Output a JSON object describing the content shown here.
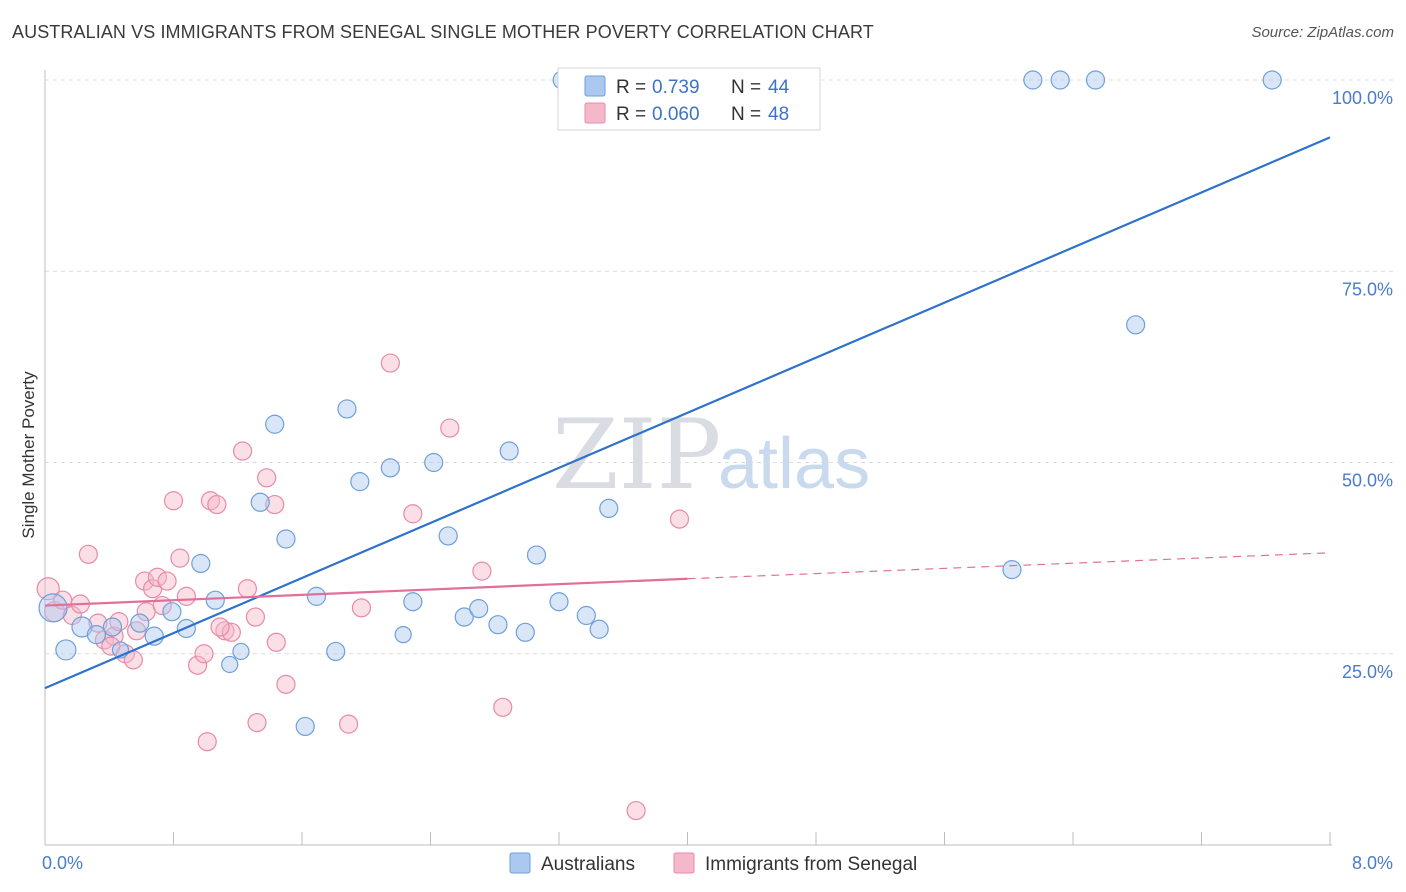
{
  "header": {
    "title": "AUSTRALIAN VS IMMIGRANTS FROM SENEGAL SINGLE MOTHER POVERTY CORRELATION CHART",
    "source": "Source: ZipAtlas.com"
  },
  "watermark": {
    "zip": "ZIP",
    "atlas": "atlas"
  },
  "legend": {
    "rows": [
      {
        "r_label": "R =",
        "r_value": "0.739",
        "n_label": "N =",
        "n_value": "44"
      },
      {
        "r_label": "R =",
        "r_value": "0.060",
        "n_label": "N =",
        "n_value": "48"
      }
    ]
  },
  "bottom_legend": {
    "series_a": "Australians",
    "series_b": "Immigrants from Senegal"
  },
  "colors": {
    "blue_fill": "#aac8f0",
    "blue_stroke": "#6f9fd8",
    "blue_line": "#2f72cc",
    "pink_fill": "#f5b8ca",
    "pink_stroke": "#e88aa8",
    "pink_line": "#e0709a",
    "tick_text": "#4a7cc9",
    "grid": "#dcdcdc"
  },
  "chart_data": {
    "type": "scatter",
    "title": "AUSTRALIAN VS IMMIGRANTS FROM SENEGAL SINGLE MOTHER POVERTY CORRELATION CHART",
    "xlabel": "",
    "ylabel": "Single Mother Poverty",
    "xlim": [
      0,
      8
    ],
    "ylim": [
      0,
      100
    ],
    "x_tick_labels": [
      "0.0%",
      "8.0%"
    ],
    "y_tick_labels": [
      "25.0%",
      "50.0%",
      "75.0%",
      "100.0%"
    ],
    "y_ticks": [
      25,
      50,
      75,
      100
    ],
    "x_minor_ticks": [
      0.8,
      1.6,
      2.4,
      3.2,
      4.0,
      4.8,
      5.6,
      6.4,
      7.2,
      8.0
    ],
    "grid": true,
    "legend_position": "top-center",
    "series": [
      {
        "name": "Australians",
        "color": "#aac8f0",
        "stats": {
          "R": 0.739,
          "N": 44
        },
        "trend": {
          "x": [
            0,
            8
          ],
          "y": [
            20.5,
            92.5
          ]
        },
        "points": [
          [
            0.05,
            31,
            14
          ],
          [
            0.13,
            25.5,
            10
          ],
          [
            0.23,
            28.5,
            10
          ],
          [
            0.32,
            27.5,
            9
          ],
          [
            0.42,
            28.5,
            9
          ],
          [
            0.47,
            25.5,
            8
          ],
          [
            0.59,
            29,
            9
          ],
          [
            0.68,
            27.3,
            9
          ],
          [
            0.79,
            30.5,
            9
          ],
          [
            0.88,
            28.3,
            9
          ],
          [
            0.97,
            36.8,
            9
          ],
          [
            1.06,
            32,
            9
          ],
          [
            1.15,
            23.6,
            8
          ],
          [
            1.22,
            25.3,
            8
          ],
          [
            1.34,
            44.8,
            9
          ],
          [
            1.43,
            55,
            9
          ],
          [
            1.5,
            40,
            9
          ],
          [
            1.69,
            32.5,
            9
          ],
          [
            1.81,
            25.3,
            9
          ],
          [
            1.88,
            57,
            9
          ],
          [
            1.96,
            47.5,
            9
          ],
          [
            2.15,
            49.3,
            9
          ],
          [
            2.23,
            27.5,
            8
          ],
          [
            2.29,
            31.8,
            9
          ],
          [
            2.42,
            50,
            9
          ],
          [
            2.51,
            40.4,
            9
          ],
          [
            2.61,
            29.8,
            9
          ],
          [
            2.7,
            30.9,
            9
          ],
          [
            2.82,
            28.8,
            9
          ],
          [
            2.89,
            51.5,
            9
          ],
          [
            2.99,
            27.8,
            9
          ],
          [
            3.06,
            37.9,
            9
          ],
          [
            3.2,
            31.8,
            9
          ],
          [
            3.37,
            30,
            9
          ],
          [
            3.45,
            28.2,
            9
          ],
          [
            3.51,
            44,
            9
          ],
          [
            1.62,
            15.5,
            9
          ],
          [
            3.22,
            100,
            9
          ],
          [
            6.15,
            100,
            9
          ],
          [
            6.32,
            100,
            9
          ],
          [
            6.54,
            100,
            9
          ],
          [
            7.64,
            100,
            9
          ],
          [
            6.79,
            68,
            9
          ],
          [
            6.02,
            36,
            9
          ]
        ]
      },
      {
        "name": "Immigrants from Senegal",
        "color": "#f5b8ca",
        "stats": {
          "R": 0.06,
          "N": 48
        },
        "trend": {
          "x": [
            0,
            4.0
          ],
          "y": [
            31.3,
            34.8
          ]
        },
        "trend_dashed": {
          "x": [
            4.0,
            8
          ],
          "y": [
            34.8,
            38.2
          ]
        },
        "points": [
          [
            0.02,
            33.5,
            11
          ],
          [
            0.06,
            30.5,
            10
          ],
          [
            0.11,
            32,
            9
          ],
          [
            0.17,
            30,
            9
          ],
          [
            0.22,
            31.5,
            9
          ],
          [
            0.27,
            38,
            9
          ],
          [
            0.33,
            29,
            9
          ],
          [
            0.37,
            26.8,
            9
          ],
          [
            0.43,
            27.3,
            9
          ],
          [
            0.5,
            25,
            9
          ],
          [
            0.55,
            24.2,
            9
          ],
          [
            0.62,
            34.5,
            9
          ],
          [
            0.67,
            33.5,
            9
          ],
          [
            0.7,
            35,
            9
          ],
          [
            0.76,
            34.5,
            9
          ],
          [
            0.8,
            45,
            9
          ],
          [
            0.84,
            37.5,
            9
          ],
          [
            0.88,
            32.5,
            9
          ],
          [
            0.95,
            23.5,
            9
          ],
          [
            0.99,
            25,
            9
          ],
          [
            1.03,
            45,
            9
          ],
          [
            1.07,
            44.5,
            9
          ],
          [
            1.12,
            28,
            9
          ],
          [
            1.16,
            27.8,
            9
          ],
          [
            1.23,
            51.5,
            9
          ],
          [
            1.26,
            33.5,
            9
          ],
          [
            1.31,
            29.8,
            9
          ],
          [
            1.38,
            48,
            9
          ],
          [
            1.43,
            44.5,
            9
          ],
          [
            1.44,
            26.5,
            9
          ],
          [
            1.5,
            21,
            9
          ],
          [
            1.32,
            16,
            9
          ],
          [
            1.01,
            13.5,
            9
          ],
          [
            1.89,
            15.8,
            9
          ],
          [
            1.97,
            31,
            9
          ],
          [
            2.15,
            63,
            9
          ],
          [
            2.29,
            43.3,
            9
          ],
          [
            2.52,
            54.5,
            9
          ],
          [
            2.72,
            35.8,
            9
          ],
          [
            2.85,
            18,
            9
          ],
          [
            3.68,
            4.5,
            9
          ],
          [
            3.95,
            42.6,
            9
          ],
          [
            0.41,
            26,
            9
          ],
          [
            0.63,
            30.5,
            9
          ],
          [
            0.73,
            31.3,
            9
          ],
          [
            1.09,
            28.5,
            9
          ],
          [
            0.46,
            29.2,
            9
          ],
          [
            0.57,
            28,
            9
          ]
        ]
      }
    ]
  }
}
